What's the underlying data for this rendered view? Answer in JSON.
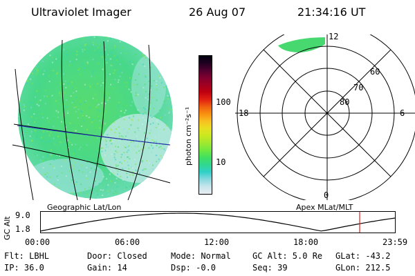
{
  "header": {
    "title": "Ultraviolet Imager",
    "date": "26 Aug 07",
    "time": "21:34:16 UT"
  },
  "colorbar": {
    "unit_label": "photon cm⁻²s⁻¹",
    "ticks": [
      {
        "value": 100,
        "label": "100"
      },
      {
        "value": 10,
        "label": "10"
      }
    ],
    "range": [
      2,
      600
    ],
    "colors": [
      "#e8eef2",
      "#c8e4ec",
      "#88d8e0",
      "#30d0c8",
      "#30d890",
      "#40e060",
      "#70e840",
      "#a0e830",
      "#c8e820",
      "#e8e020",
      "#f8c020",
      "#f89010",
      "#f06010",
      "#e02010",
      "#c00010",
      "#a00020",
      "#800030",
      "#500030",
      "#200020",
      "#000010"
    ]
  },
  "geo_panel": {
    "label": "Geographic Lat/Lon"
  },
  "apex_panel": {
    "label": "Apex MLat/MLT",
    "mlt_labels": {
      "top": "12",
      "left": "18",
      "right": "6",
      "bottom": "0"
    },
    "mlat_labels": [
      {
        "value": 60,
        "text": "60"
      },
      {
        "value": 70,
        "text": "70"
      },
      {
        "value": 80,
        "text": "80"
      }
    ]
  },
  "altitude_plot": {
    "ylabel": "GC Alt",
    "yticks": [
      "9.0",
      "1.8"
    ],
    "ylim": [
      1.8,
      9.0
    ],
    "xticks": [
      "00:00",
      "06:00",
      "12:00",
      "18:00",
      "23:59"
    ],
    "marker_hours": 21.57,
    "marker_color": "#e02020"
  },
  "status": {
    "flt": "Flt: LBHL",
    "ip": "IP: 36.0",
    "door": "Door: Closed",
    "gain": "Gain: 14",
    "mode": "Mode: Normal",
    "dsp": "Dsp:  -0.0",
    "gcalt": "GC Alt: 5.0 Re",
    "seq": "Seq: 39",
    "glat": "GLat: -43.2",
    "glon": "GLon: 212.5"
  }
}
